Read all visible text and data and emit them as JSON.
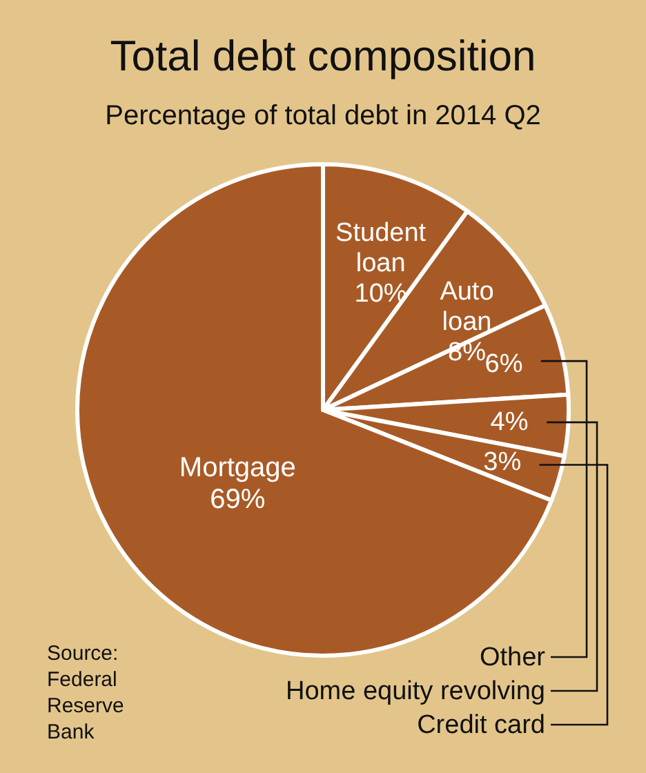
{
  "chart_data": {
    "type": "pie",
    "title": "Total debt composition",
    "subtitle": "Percentage of total debt in 2014 Q2",
    "categories": [
      "Student loan",
      "Auto loan",
      "Other",
      "Home equity revolving",
      "Credit card",
      "Mortgage"
    ],
    "values": [
      10,
      8,
      6,
      4,
      3,
      69
    ],
    "value_labels": [
      "10%",
      "8%",
      "6%",
      "4%",
      "3%",
      "69%"
    ],
    "colors": [
      "#a85a26",
      "#a85a26",
      "#a85a26",
      "#a85a26",
      "#a85a26",
      "#a85a26"
    ],
    "annotations": [
      "Source:\nFederal\nReserve\nBank"
    ]
  }
}
